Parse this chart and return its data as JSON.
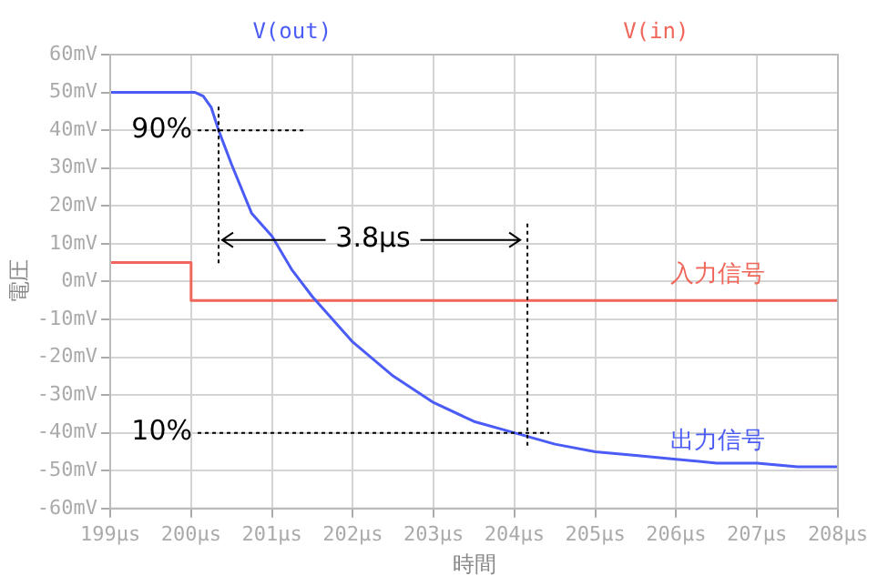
{
  "chart_data": {
    "type": "line",
    "xlabel": "時間",
    "ylabel": "電圧",
    "xlim": [
      199,
      208
    ],
    "xticks": [
      {
        "value": 199,
        "label": "199μs"
      },
      {
        "value": 200,
        "label": "200μs"
      },
      {
        "value": 201,
        "label": "201μs"
      },
      {
        "value": 202,
        "label": "202μs"
      },
      {
        "value": 203,
        "label": "203μs"
      },
      {
        "value": 204,
        "label": "204μs"
      },
      {
        "value": 205,
        "label": "205μs"
      },
      {
        "value": 206,
        "label": "206μs"
      },
      {
        "value": 207,
        "label": "207μs"
      },
      {
        "value": 208,
        "label": "208μs"
      }
    ],
    "ylim": [
      -60,
      60
    ],
    "yticks": [
      {
        "value": 60,
        "label": "60mV"
      },
      {
        "value": 50,
        "label": "50mV"
      },
      {
        "value": 40,
        "label": "40mV"
      },
      {
        "value": 30,
        "label": "30mV"
      },
      {
        "value": 20,
        "label": "20mV"
      },
      {
        "value": 10,
        "label": "10mV"
      },
      {
        "value": 0,
        "label": "0mV"
      },
      {
        "value": -10,
        "label": "-10mV"
      },
      {
        "value": -20,
        "label": "-20mV"
      },
      {
        "value": -30,
        "label": "-30mV"
      },
      {
        "value": -40,
        "label": "-40mV"
      },
      {
        "value": -50,
        "label": "-50mV"
      },
      {
        "value": -60,
        "label": "-60mV"
      }
    ],
    "grid": true,
    "legend": "top",
    "marker": "none",
    "series": [
      {
        "name": "V(out)",
        "color": "#4a5cf5",
        "x": [
          199,
          200.05,
          200.15,
          200.25,
          200.34,
          200.5,
          200.75,
          201,
          201.25,
          201.5,
          201.75,
          202,
          202.5,
          203,
          203.5,
          204,
          204.5,
          205,
          205.5,
          206,
          206.5,
          207,
          207.5,
          208
        ],
        "values": [
          50,
          50,
          49,
          46,
          40,
          31,
          18,
          12,
          3,
          -4,
          -10,
          -16,
          -25,
          -32,
          -37,
          -40,
          -43,
          -45,
          -46,
          -47,
          -48,
          -48,
          -49,
          -49
        ]
      },
      {
        "name": "V(in)",
        "color": "#f0665a",
        "x": [
          199,
          200,
          200,
          208
        ],
        "values": [
          5,
          5,
          -5,
          -5
        ]
      }
    ],
    "ref_lines": [
      {
        "axis": "y",
        "value": 40,
        "color": "#000000",
        "line_style": "dotted"
      },
      {
        "axis": "y",
        "value": -40,
        "color": "#000000",
        "line_style": "dotted"
      },
      {
        "axis": "x",
        "value": 200.34,
        "color": "#000000",
        "line_style": "dotted"
      },
      {
        "axis": "x",
        "value": 204.16,
        "color": "#000000",
        "line_style": "dotted"
      }
    ],
    "annotations": [
      "90%",
      "10%",
      {
        "text": "3.8μs",
        "x": 204.16,
        "y": 11
      },
      "入力信号",
      "出力信号"
    ]
  }
}
